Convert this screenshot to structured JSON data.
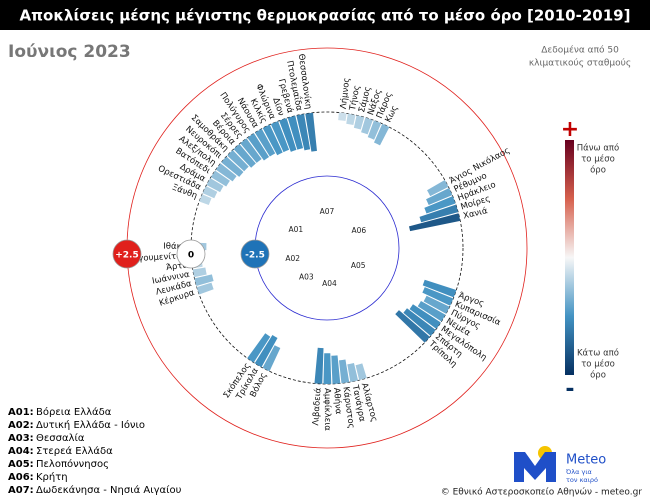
{
  "chart_data": {
    "type": "radial_bar",
    "title": "Αποκλίσεις μέσης μέγιστης θερμοκρασίας από το μέσο όρο [2010-2019]",
    "subtitle": "Ιούνιος 2023",
    "note": [
      "Δεδομένα από 50",
      "κλιματικούς σταθμούς"
    ],
    "ylim": [
      -2.5,
      2.5
    ],
    "yticks": [
      -2.5,
      0,
      {
        "value": 2.5,
        "label": "+2.5"
      }
    ],
    "colorscale": [
      "#67001f",
      "#d6604d",
      "#f7f7f7",
      "#4393c3",
      "#053061"
    ],
    "colorbar": {
      "top_sign": "+",
      "top_label": [
        "Πάνω από",
        "το μέσο",
        "όρο"
      ],
      "bottom_label": [
        "Κάτω από",
        "το μέσο",
        "όρο"
      ],
      "bottom_sign": "-"
    },
    "groups": [
      {
        "code": "A01",
        "stations": [
          "Ξάνθη",
          "Ορεστιάδα",
          "Δράμα",
          "Βατόπεδι",
          "Αλεξ/πολη",
          "Νευροκόπι",
          "Σαμοθράκη",
          "Βέροια",
          "Σέρρες",
          "Πολύγυρος",
          "Νάουσα",
          "Κιλκίς",
          "Φλώρινα",
          "Δίον",
          "Γρεβενά",
          "Πτολεμαΐδα",
          "Θεσσαλονίκη"
        ],
        "values": [
          -0.4,
          -0.5,
          -0.6,
          -0.7,
          -0.8,
          -0.9,
          -0.9,
          -1.0,
          -1.0,
          -1.1,
          -1.1,
          -1.2,
          -1.2,
          -1.3,
          -1.3,
          -1.4,
          -1.5
        ]
      },
      {
        "code": "A02",
        "stations": [
          "Κέρκυρα",
          "Λευκάδα",
          "Ιωάννινα",
          "Άρτα",
          "Ηγουμενίτσα",
          "Ιθάκη"
        ],
        "values": [
          -0.6,
          -0.7,
          -0.5,
          -0.4,
          -0.5,
          -0.6
        ]
      },
      {
        "code": "A03",
        "stations": [
          "Βόλος",
          "Τρίκαλα",
          "Σκόπελος"
        ],
        "values": [
          -1.0,
          -1.3,
          -1.2
        ]
      },
      {
        "code": "A04",
        "stations": [
          "Αλίαρτος",
          "Τανάγρα",
          "Κάρυστος",
          "Αθήνα",
          "Αμφίκλεια",
          "Λιβαδειά"
        ],
        "values": [
          -0.6,
          -0.7,
          -0.9,
          -1.1,
          -1.2,
          -1.4
        ]
      },
      {
        "code": "A05",
        "stations": [
          "Άργος",
          "Κυπαρισσία",
          "Πύργος",
          "Νεμέα",
          "Μεγαλόπολη",
          "Σπάρτη",
          "Τρίπολη"
        ],
        "values": [
          -1.3,
          -1.2,
          -1.0,
          -1.1,
          -1.3,
          -1.4,
          -1.6
        ]
      },
      {
        "code": "A06",
        "stations": [
          "Άγιος Νικόλαος",
          "Ρέθυμνο",
          "Ηράκλειο",
          "Μοίρες",
          "Χανιά"
        ],
        "values": [
          -0.8,
          -1.0,
          -1.2,
          -1.5,
          -2.0
        ]
      },
      {
        "code": "A07",
        "stations": [
          "Λήμνος",
          "Τήνος",
          "Σάμος",
          "Νάξος",
          "Πάρος",
          "Κως"
        ],
        "values": [
          -0.3,
          -0.4,
          -0.5,
          -0.6,
          -0.7,
          -0.8
        ]
      }
    ],
    "legend": [
      {
        "key": "A01:",
        "text": "Βόρεια Ελλάδα"
      },
      {
        "key": "A02:",
        "text": "Δυτική Ελλάδα - Ιόνιο"
      },
      {
        "key": "A03:",
        "text": "Θεσσαλία"
      },
      {
        "key": "A04:",
        "text": "Στερεά Ελλάδα"
      },
      {
        "key": "A05:",
        "text": "Πελοπόννησος"
      },
      {
        "key": "A06:",
        "text": "Κρήτη"
      },
      {
        "key": "A07:",
        "text": "Δωδεκάνησα - Νησιά Αιγαίου"
      }
    ],
    "logo": {
      "name": "Meteo",
      "tagline": [
        "Όλα για",
        "τον καιρό"
      ]
    },
    "footer": "© Εθνικό Αστεροσκοπείο Αθηνών - meteo.gr"
  }
}
